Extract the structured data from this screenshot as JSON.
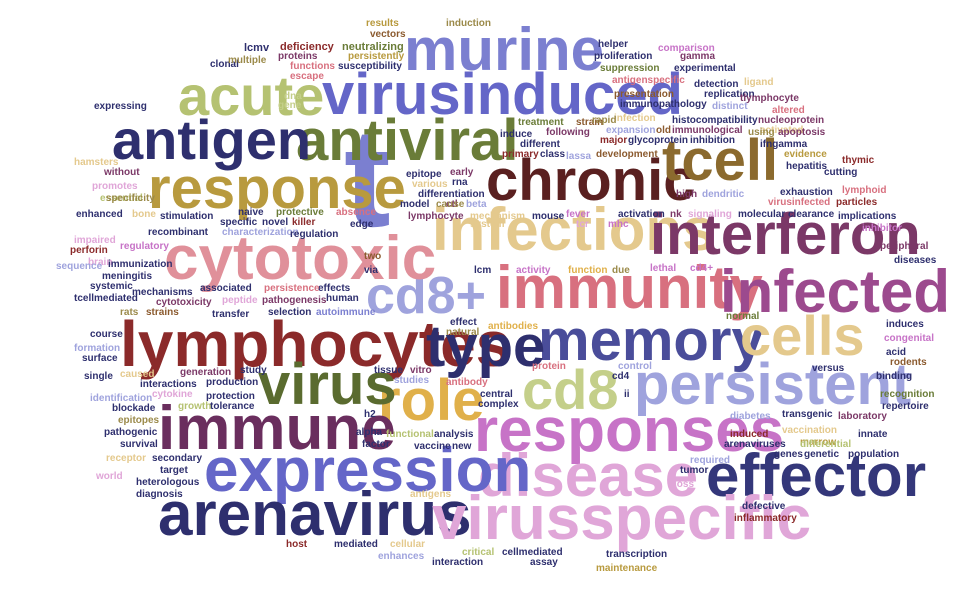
{
  "palette": {
    "navy": "#2e2f6e",
    "periwinkle": "#7b7fd0",
    "lavender": "#9fa3dd",
    "olive": "#6a7c38",
    "sage": "#b5c272",
    "mustard": "#b89a3e",
    "tan": "#e4c98d",
    "brown": "#8b5a2e",
    "maroon": "#8b2a2a",
    "rose": "#d8707f",
    "plum": "#7b3867",
    "orchid": "#c773c7",
    "pink": "#e0a6d8"
  },
  "words": [
    "t",
    "infections",
    "immunity",
    "interferon",
    "infected",
    "cd8+",
    "memory",
    "cells",
    "persistent",
    "cd8",
    "lymphocytes",
    "cytotoxic",
    "type",
    "role",
    "virus",
    "immune",
    "responses",
    "disease",
    "expression",
    "effector",
    "arenavirus",
    "virusspecific",
    "murine",
    "virusinduced",
    "acute",
    "antiviral",
    "antigen",
    "response",
    "chronic",
    "tcell",
    "results",
    "induction",
    "vectors",
    "lcmv",
    "deficiency",
    "neutralizing",
    "helper",
    "comparison",
    "clonal",
    "proteins",
    "functions",
    "persistently",
    "proliferation",
    "gamma",
    "multiple",
    "escape",
    "susceptibility",
    "suppression",
    "experimental",
    "dna",
    "gene",
    "antigenspecific",
    "detection",
    "ligand",
    "presentation",
    "replication",
    "expressing",
    "tlymphocyte",
    "immunopathology",
    "distinct",
    "altered",
    "infection",
    "nucleoprotein",
    "treatment",
    "strain",
    "expansion",
    "old",
    "histocompatibility",
    "activated",
    "following",
    "rapid",
    "immunological",
    "using",
    "induce",
    "different",
    "major",
    "glycoprotein",
    "apoptosis",
    "primary",
    "class",
    "inhibition",
    "ifngamma",
    "lassa",
    "development",
    "hamsters",
    "without",
    "evidence",
    "thymic",
    "cutting",
    "promotes",
    "essential",
    "epitope",
    "various",
    "early",
    "rna",
    "high",
    "dendritic",
    "exhaustion",
    "lymphoid",
    "differentiation",
    "ctl",
    "cause",
    "beta",
    "enhanced",
    "bone",
    "stimulation",
    "naive",
    "protective",
    "absence",
    "model",
    "lymphocyte",
    "specific",
    "novel",
    "killer",
    "mechanism",
    "fever",
    "activation",
    "nk",
    "signaling",
    "molecular",
    "virusinfected",
    "particles",
    "clearance",
    "implications",
    "recombinant",
    "characterization",
    "regulation",
    "edge",
    "system",
    "mouse",
    "tcr",
    "mhc",
    "inhibitor",
    "impaired",
    "perforin",
    "regulatory",
    "brain",
    "immunization",
    "specificity",
    "sequence",
    "meningitis",
    "diseases",
    "peripheral",
    "two",
    "via",
    "lcm",
    "activity",
    "function",
    "due",
    "lethal",
    "cd4+",
    "systemic",
    "associated",
    "mechanisms",
    "effects",
    "human",
    "tcellmediated",
    "cytotoxicity",
    "peptide",
    "pathogenesis",
    "rats",
    "strains",
    "persistence",
    "selection",
    "autoimmune",
    "transfer",
    "normal",
    "induces",
    "congenital",
    "course",
    "formation",
    "surface",
    "effect",
    "natural",
    "antibodies",
    "acid",
    "single",
    "caused",
    "generation",
    "study",
    "tissue",
    "vitro",
    "studies",
    "protein",
    "control",
    "rodents",
    "interactions",
    "production",
    "antibody",
    "versus",
    "binding",
    "cytokine",
    "identification",
    "protection",
    "growth",
    "tolerance",
    "blockade",
    "central",
    "complex",
    "cd4",
    "ii",
    "recognition",
    "repertoire",
    "epitopes",
    "pathogenic",
    "h2",
    "diabetes",
    "transgenic",
    "laboratory",
    "survival",
    "alpha",
    "factor",
    "functional",
    "analysis",
    "vaccine",
    "new",
    "vaccination",
    "marrow",
    "induced",
    "arenaviruses",
    "differential",
    "innate",
    "receptor",
    "secondary",
    "target",
    "required",
    "genes",
    "genetic",
    "population",
    "tumor",
    "heterologous",
    "world",
    "diagnosis",
    "loss",
    "antigens",
    "defective",
    "inflammatory",
    "host",
    "mediated",
    "cellular",
    "enhances",
    "critical",
    "cellmediated",
    "assay",
    "interaction",
    "transcription",
    "maintenance",
    "hepatitis"
  ]
}
